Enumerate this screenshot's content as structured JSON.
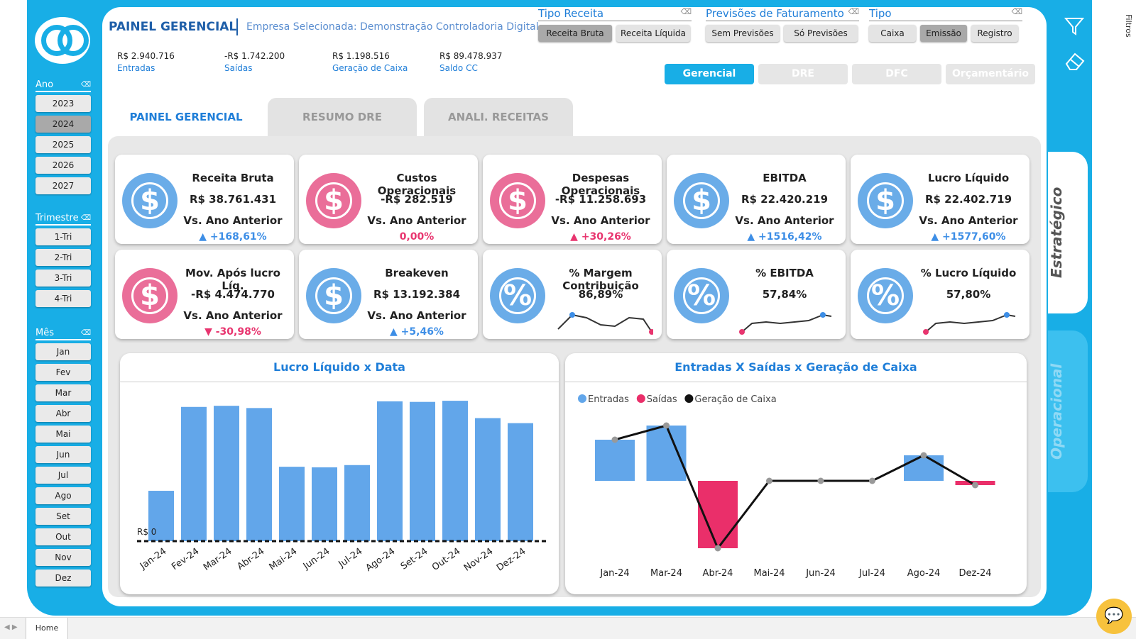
{
  "header": {
    "title": "PAINEL GERENCIAL",
    "subtitle": "Empresa Selecionada: Demonstração Controladoria Digital"
  },
  "summary": [
    {
      "value": "R$ 2.940.716",
      "label": "Entradas"
    },
    {
      "value": "-R$ 1.742.200",
      "label": "Saídas"
    },
    {
      "value": "R$ 1.198.516",
      "label": "Geração de Caixa"
    },
    {
      "value": "R$ 89.478.937",
      "label": "Saldo CC"
    }
  ],
  "filters": {
    "tipo_receita": {
      "title": "Tipo Receita",
      "options": [
        "Receita Bruta",
        "Receita Líquida"
      ],
      "selected": "Receita Bruta"
    },
    "previsoes": {
      "title": "Previsões de Faturamento",
      "options": [
        "Sem Previsões",
        "Só Previsões"
      ]
    },
    "tipo": {
      "title": "Tipo",
      "options": [
        "Caixa",
        "Emissão",
        "Registro"
      ],
      "selected": "Emissão"
    }
  },
  "nav_buttons": [
    "Gerencial",
    "DRE",
    "DFC",
    "Orçamentário"
  ],
  "tabs": [
    "PAINEL GERENCIAL",
    "RESUMO DRE",
    "ANALI. RECEITAS"
  ],
  "sidebar": {
    "ano": {
      "title": "Ano",
      "items": [
        "2023",
        "2024",
        "2025",
        "2026",
        "2027"
      ],
      "selected": "2024"
    },
    "trimestre": {
      "title": "Trimestre",
      "items": [
        "1-Tri",
        "2-Tri",
        "3-Tri",
        "4-Tri"
      ]
    },
    "mes": {
      "title": "Mês",
      "items": [
        "Jan",
        "Fev",
        "Mar",
        "Abr",
        "Mai",
        "Jun",
        "Jul",
        "Ago",
        "Set",
        "Out",
        "Nov",
        "Dez"
      ]
    }
  },
  "cards_row1": [
    {
      "title": "Receita Bruta",
      "value": "R$ 38.761.431",
      "compare": "Vs. Ano Anterior",
      "delta": "▲ +168,61%",
      "dir": "up",
      "color": "blue",
      "icon": "dollar-icon"
    },
    {
      "title": "Custos Operacionais",
      "value": "-R$ 282.519",
      "compare": "Vs. Ano Anterior",
      "delta": "0,00%",
      "dir": "zero",
      "color": "pink",
      "icon": "invoice-icon"
    },
    {
      "title": "Despesas Operacionais",
      "value": "-R$ 11.258.693",
      "compare": "Vs. Ano Anterior",
      "delta": "▲ +30,26%",
      "dir": "down",
      "color": "pink",
      "icon": "money-bag-icon"
    },
    {
      "title": "EBITDA",
      "value": "R$ 22.420.219",
      "compare": "Vs. Ano Anterior",
      "delta": "▲ +1516,42%",
      "dir": "up",
      "color": "blue",
      "icon": "hand-money-icon"
    },
    {
      "title": "Lucro Líquido",
      "value": "R$ 22.402.719",
      "compare": "Vs. Ano Anterior",
      "delta": "▲ +1577,60%",
      "dir": "up",
      "color": "blue",
      "icon": "funnel-money-icon"
    }
  ],
  "cards_row2": [
    {
      "title": "Mov. Após lucro Líq.",
      "value": "-R$ 4.474.770",
      "compare": "Vs. Ano Anterior",
      "delta": "▼ -30,98%",
      "dir": "down",
      "color": "pink",
      "icon": "speech-dollar-icon"
    },
    {
      "title": "Breakeven",
      "value": "R$ 13.192.384",
      "compare": "Vs. Ano Anterior",
      "delta": "▲ +5,46%",
      "dir": "up",
      "color": "blue",
      "icon": "hands-dollar-icon"
    },
    {
      "title": "% Margem Contribuição",
      "value": "86,89%",
      "color": "blue",
      "icon": "percent-badge-icon"
    },
    {
      "title": "% EBITDA",
      "value": "57,84%",
      "color": "blue",
      "icon": "hand-percent-icon"
    },
    {
      "title": "% Lucro Líquido",
      "value": "57,80%",
      "color": "blue",
      "icon": "percent-arrow-icon"
    }
  ],
  "side_tabs": [
    "Estratégico",
    "Operacional"
  ],
  "taskbar": {
    "home": "Home"
  },
  "filtros_label": "Filtros",
  "chart_data": [
    {
      "type": "bar",
      "title": "Lucro Líquido x Data",
      "categories": [
        "Jan-24",
        "Fev-24",
        "Mar-24",
        "Abr-24",
        "Mai-24",
        "Jun-24",
        "Jul-24",
        "Ago-24",
        "Set-24",
        "Out-24",
        "Nov-24",
        "Dez-24"
      ],
      "values": [
        0.9,
        2.4,
        2.42,
        2.38,
        1.33,
        1.32,
        1.36,
        2.5,
        2.49,
        2.51,
        2.2,
        2.11
      ],
      "baseline_label": "R$ 0",
      "color": "#62a6ea"
    },
    {
      "type": "bar",
      "title": "Entradas X Saídas x Geração de Caixa",
      "categories": [
        "Jan-24",
        "Mar-24",
        "Abr-24",
        "Mai-24",
        "Jun-24",
        "Jul-24",
        "Ago-24",
        "Dez-24"
      ],
      "series": [
        {
          "name": "Entradas",
          "color": "#62a6ea",
          "values": [
            0.58,
            0.78,
            0,
            0,
            0,
            0,
            0.36,
            0
          ]
        },
        {
          "name": "Saídas",
          "color": "#ea2f6a",
          "values": [
            0,
            0,
            -0.95,
            0,
            0,
            0,
            0,
            -0.06
          ]
        },
        {
          "name": "Geração de Caixa",
          "color": "#111111",
          "type": "line",
          "values": [
            0.58,
            0.78,
            -0.95,
            0,
            0,
            0,
            0.36,
            -0.06
          ]
        }
      ],
      "legend": "top-left"
    }
  ]
}
